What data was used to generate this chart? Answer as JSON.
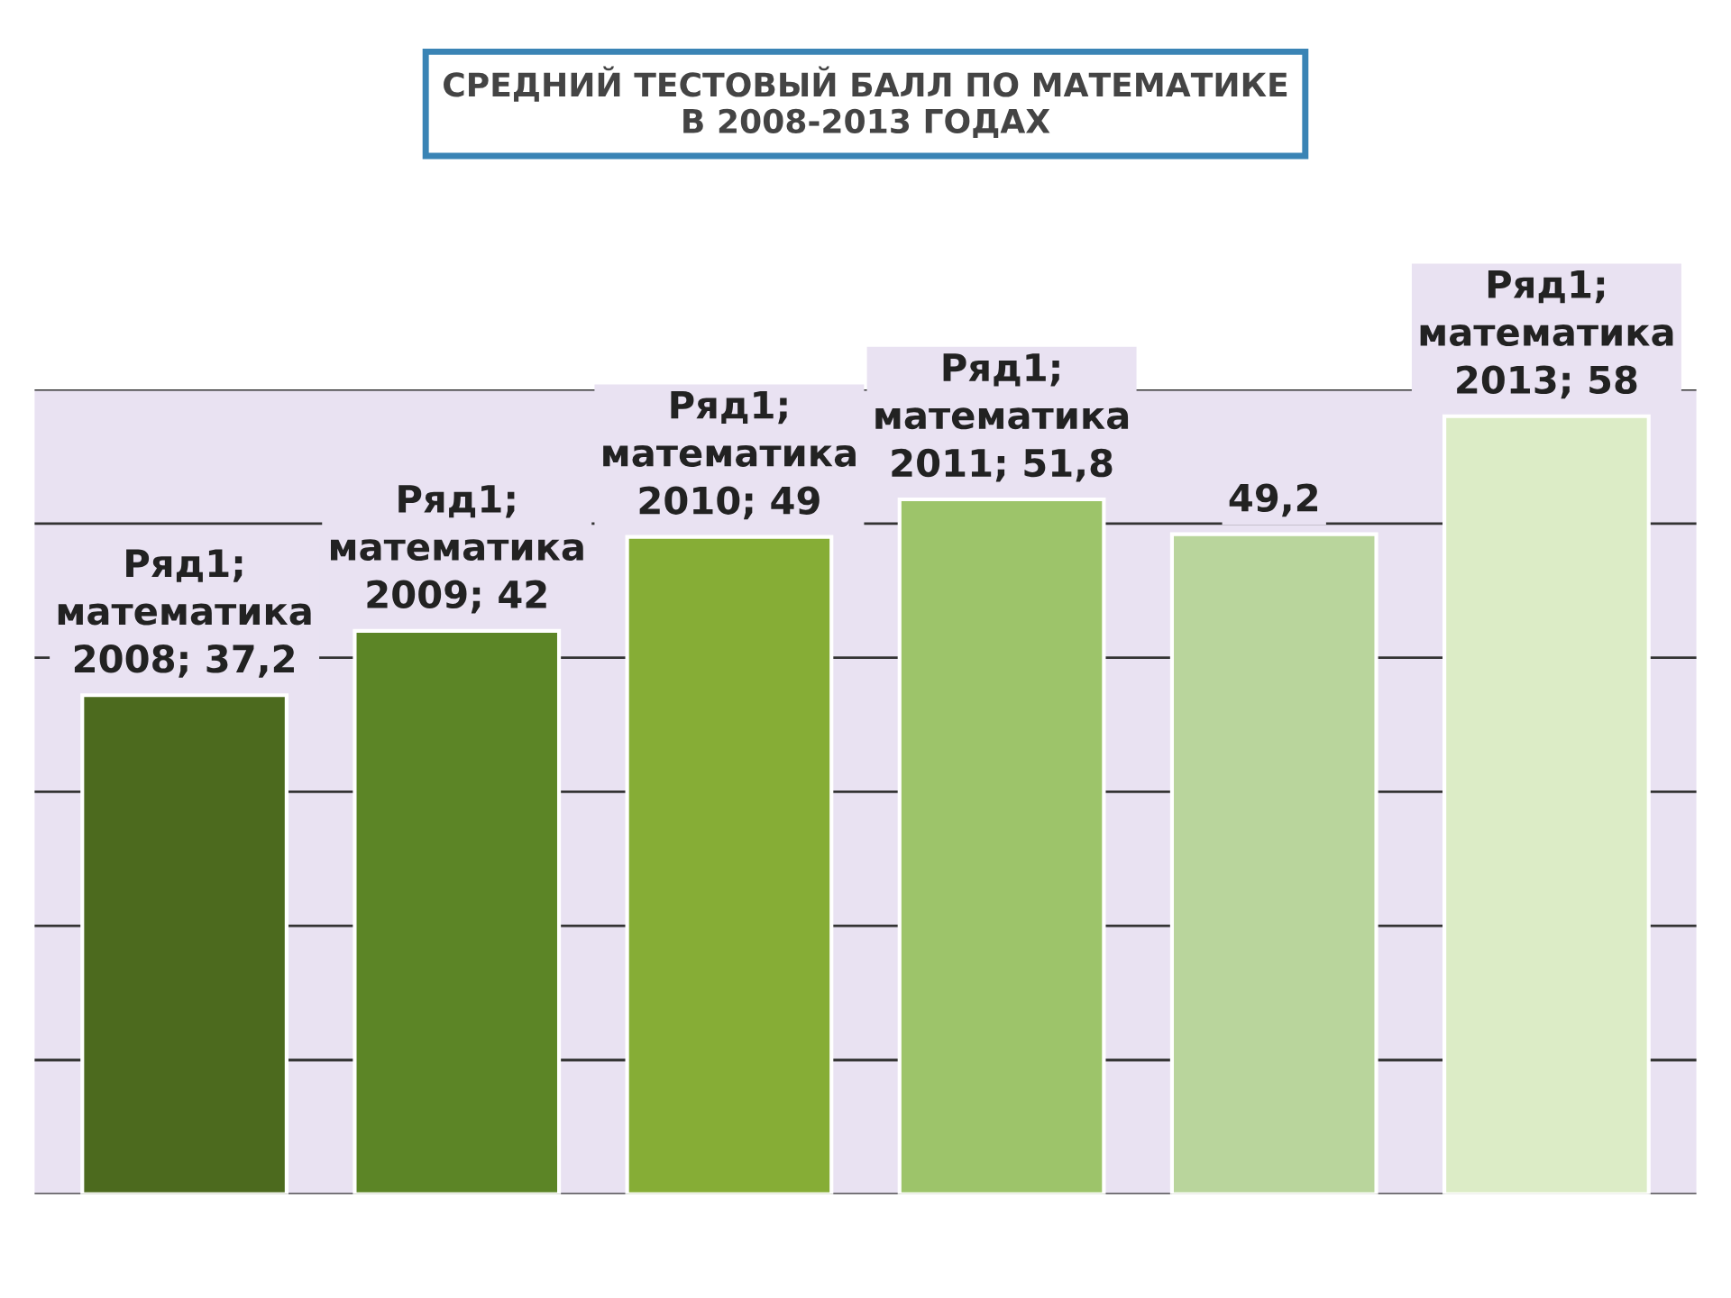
{
  "chart_data": {
    "type": "bar",
    "title": "СРЕДНИЙ ТЕСТОВЫЙ БАЛЛ ПО МАТЕМАТИКЕ\nВ 2008-2013 ГОДАХ",
    "categories": [
      null,
      null,
      null,
      null,
      null,
      null
    ],
    "values": [
      37.2,
      42,
      49,
      51.8,
      49.2,
      58
    ],
    "value_labels": [
      "Ряд1;\nматематика\n2008; 37,2",
      "Ряд1;\nматематика\n2009; 42",
      "Ряд1;\nматематика\n2010; 49",
      "Ряд1;\nматематика\n2011; 51,8",
      "49,2",
      "Ряд1;\nматематика\n2013; 58"
    ],
    "colors": [
      "#4c6a1e",
      "#5c8526",
      "#86ad36",
      "#9dc46a",
      "#b9d59c",
      "#dcecc6"
    ],
    "ylim": [
      0,
      60
    ],
    "yticks": [
      {
        "value": 0,
        "label": null
      },
      {
        "value": 10,
        "label": null
      },
      {
        "value": 20,
        "label": null
      },
      {
        "value": 30,
        "label": null
      },
      {
        "value": 40,
        "label": null
      },
      {
        "value": 50,
        "label": null
      },
      {
        "value": 60,
        "label": null
      }
    ],
    "grid": "y"
  }
}
